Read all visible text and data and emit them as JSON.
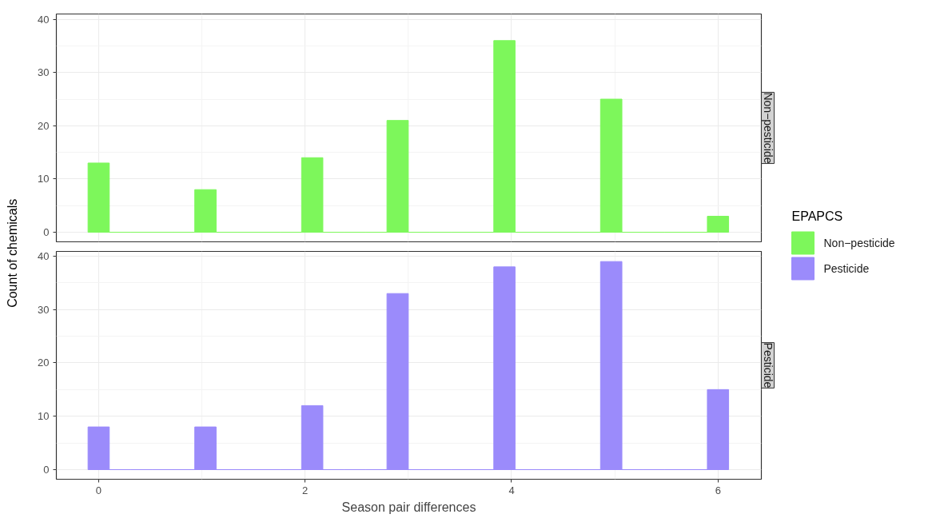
{
  "chart_data": [
    {
      "type": "histogram",
      "title": "Non−pesticide",
      "ylabel": "Count of chemicals",
      "legend_title": "EPAPCS",
      "legend": "right",
      "grid": true,
      "tick_labels": "y",
      "bins": [
        -0.103,
        0.103,
        0.31,
        0.517,
        0.724,
        0.931,
        1.138,
        1.345,
        1.552,
        1.759,
        1.966,
        2.172,
        2.379,
        2.586,
        2.793,
        3.0,
        3.207,
        3.414,
        3.621,
        3.828,
        4.034,
        4.241,
        4.448,
        4.655,
        4.862,
        5.069,
        5.276,
        5.483,
        5.69,
        5.897,
        6.103
      ],
      "series": [
        {
          "name": "Non−pesticide",
          "color": "#7df75b",
          "values": [
            13,
            0,
            0,
            0,
            0,
            8,
            0,
            0,
            0,
            0,
            14,
            0,
            0,
            0,
            21,
            0,
            0,
            0,
            0,
            36,
            0,
            0,
            0,
            0,
            25,
            0,
            0,
            0,
            0,
            3
          ]
        }
      ],
      "xlim": [
        -0.41,
        6.42
      ],
      "ylim": [
        -1.8,
        41
      ],
      "xticks": [
        0,
        2,
        4,
        6
      ],
      "yticks": [
        0,
        10,
        20,
        30,
        40
      ]
    },
    {
      "type": "histogram",
      "title": "Pesticide",
      "xlabel": "Season pair differences",
      "legend": "right",
      "grid": true,
      "bins": [
        -0.103,
        0.103,
        0.31,
        0.517,
        0.724,
        0.931,
        1.138,
        1.345,
        1.552,
        1.759,
        1.966,
        2.172,
        2.379,
        2.586,
        2.793,
        3.0,
        3.207,
        3.414,
        3.621,
        3.828,
        4.034,
        4.241,
        4.448,
        4.655,
        4.862,
        5.069,
        5.276,
        5.483,
        5.69,
        5.897,
        6.103
      ],
      "series": [
        {
          "name": "Pesticide",
          "color": "#9b8bfb",
          "values": [
            8,
            0,
            0,
            0,
            0,
            8,
            0,
            0,
            0,
            0,
            12,
            0,
            0,
            0,
            33,
            0,
            0,
            0,
            0,
            38,
            0,
            0,
            0,
            0,
            39,
            0,
            0,
            0,
            0,
            15
          ]
        }
      ],
      "xlim": [
        -0.41,
        6.42
      ],
      "ylim": [
        -1.8,
        40.9
      ],
      "xticks": [
        0,
        2,
        4,
        6
      ],
      "yticks": [
        0,
        10,
        20,
        30,
        40
      ]
    }
  ]
}
